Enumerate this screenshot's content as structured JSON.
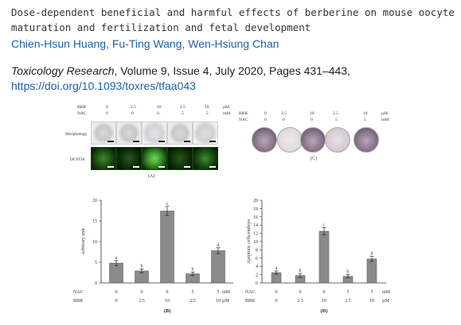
{
  "header": {
    "title": "Dose-dependent beneficial and harmful effects of berberine on mouse oocyte maturation and fertilization and fetal development",
    "authors": "Chien-Hsun Huang, Fu-Ting Wang, Wen-Hsiung Chan",
    "journal": "Toxicology Research",
    "citation_rest": ", Volume 9, Issue 4, July 2020, Pages 431–443,",
    "doi": "https://doi.org/10.1093/toxres/tfaa043"
  },
  "figure": {
    "panel_a": {
      "label": "(A)",
      "bbr_label": "BBR",
      "nac_label": "NAC",
      "bbr_values": [
        "0",
        "2.5",
        "10",
        "2.5",
        "10"
      ],
      "nac_values": [
        "0",
        "0",
        "0",
        "5",
        "5"
      ],
      "bbr_unit": "µM",
      "nac_unit": "mM",
      "rows": [
        "Morphology",
        "DCFDA"
      ]
    },
    "panel_c": {
      "label": "(C)",
      "bbr_label": "BBR",
      "nac_label": "NAC",
      "bbr_values": [
        "0",
        "2.5",
        "10",
        "2.5",
        "10"
      ],
      "nac_values": [
        "0",
        "0",
        "0",
        "5",
        "5"
      ],
      "bbr_unit": "µM",
      "nac_unit": "mM"
    }
  },
  "chart_data": [
    {
      "type": "bar",
      "panel": "(B)",
      "ylabel": "Arbitrary unit",
      "ylim": [
        0,
        20
      ],
      "yticks": [
        "0",
        "5",
        "10",
        "15",
        "20"
      ],
      "categories": [
        "1",
        "2",
        "3",
        "4",
        "5"
      ],
      "values": [
        4.8,
        2.9,
        17.4,
        2.2,
        7.8
      ],
      "errors": [
        0.6,
        0.5,
        1.1,
        0.4,
        0.7
      ],
      "letters": [
        "a",
        "b",
        "c",
        "b",
        "d"
      ],
      "row_labels": [
        "NAC",
        "BBR"
      ],
      "nac_values": [
        "0",
        "0",
        "0",
        "5",
        "5"
      ],
      "bbr_values": [
        "0",
        "2.5",
        "10",
        "2.5",
        "10"
      ],
      "units": [
        "mM",
        "µM"
      ]
    },
    {
      "type": "bar",
      "panel": "(D)",
      "ylabel": "Apoptotic cells/embryo",
      "ylim": [
        0,
        20
      ],
      "yticks": [
        "0",
        "2",
        "4",
        "6",
        "8",
        "10",
        "12",
        "14",
        "16",
        "18",
        "20"
      ],
      "categories": [
        "1",
        "2",
        "3",
        "4",
        "5"
      ],
      "values": [
        2.5,
        1.8,
        12.5,
        1.6,
        5.8
      ],
      "errors": [
        0.4,
        0.5,
        0.9,
        0.4,
        0.6
      ],
      "letters": [
        "a",
        "b",
        "c",
        "b",
        "d"
      ],
      "row_labels": [
        "NAC",
        "BBR"
      ],
      "nac_values": [
        "0",
        "0",
        "0",
        "5",
        "5"
      ],
      "bbr_values": [
        "0",
        "2.5",
        "10",
        "2.5",
        "10"
      ],
      "units": [
        "mM",
        "µM"
      ]
    }
  ]
}
